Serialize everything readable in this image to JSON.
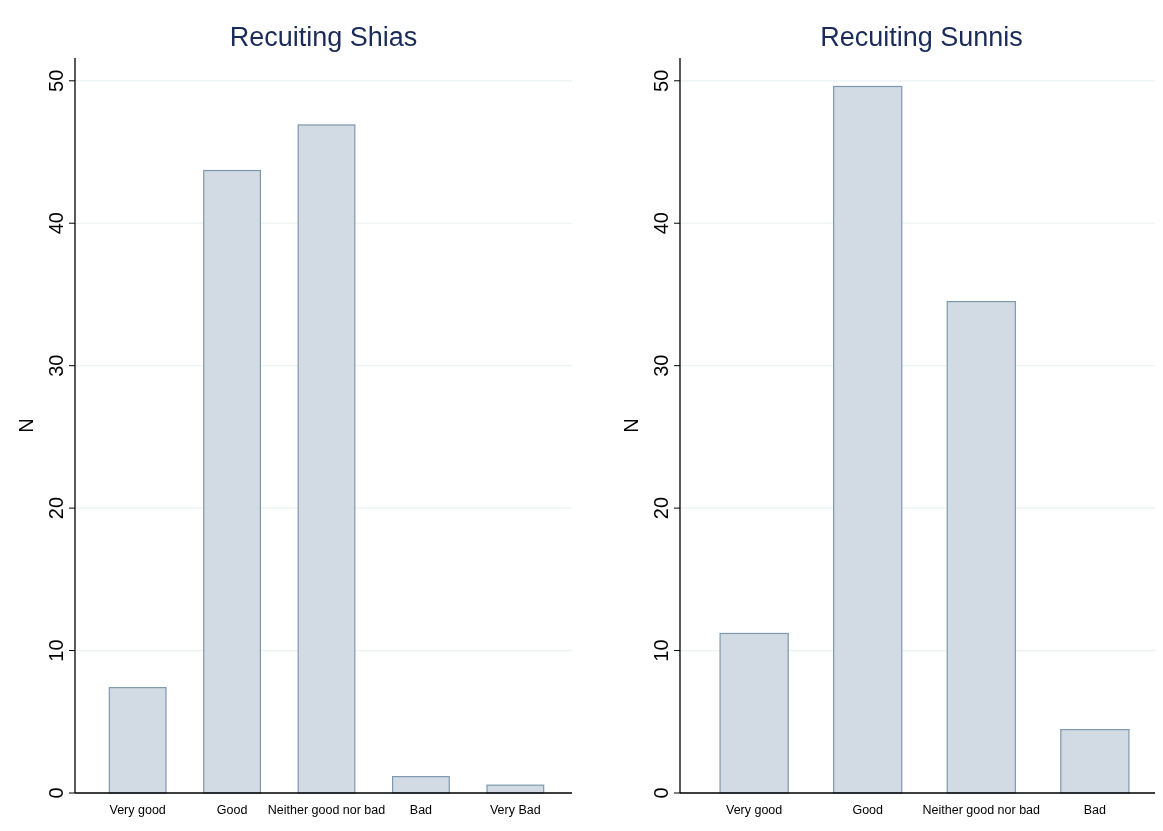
{
  "chart_data": [
    {
      "type": "bar",
      "title": "Recuiting Shias",
      "ylabel": "N",
      "categories": [
        "Very good",
        "Good",
        "Neither good nor bad",
        "Bad",
        "Very Bad"
      ],
      "series": [
        {
          "color": "#d2dae3",
          "values": [
            7.4,
            43.7,
            46.9,
            1.15,
            0.55
          ]
        }
      ],
      "ylim": [
        0,
        51.6
      ],
      "yticks": [
        0,
        10,
        20,
        30,
        40,
        50
      ],
      "grid": "y"
    },
    {
      "type": "bar",
      "title": "Recuiting Sunnis",
      "ylabel": "N",
      "categories": [
        "Very good",
        "Good",
        "Neither good nor bad",
        "Bad"
      ],
      "series": [
        {
          "color": "#d2dae3",
          "values": [
            11.2,
            49.6,
            34.5,
            4.45
          ]
        }
      ],
      "ylim": [
        0,
        51.6
      ],
      "yticks": [
        0,
        10,
        20,
        30,
        40,
        50
      ],
      "grid": "y"
    }
  ]
}
